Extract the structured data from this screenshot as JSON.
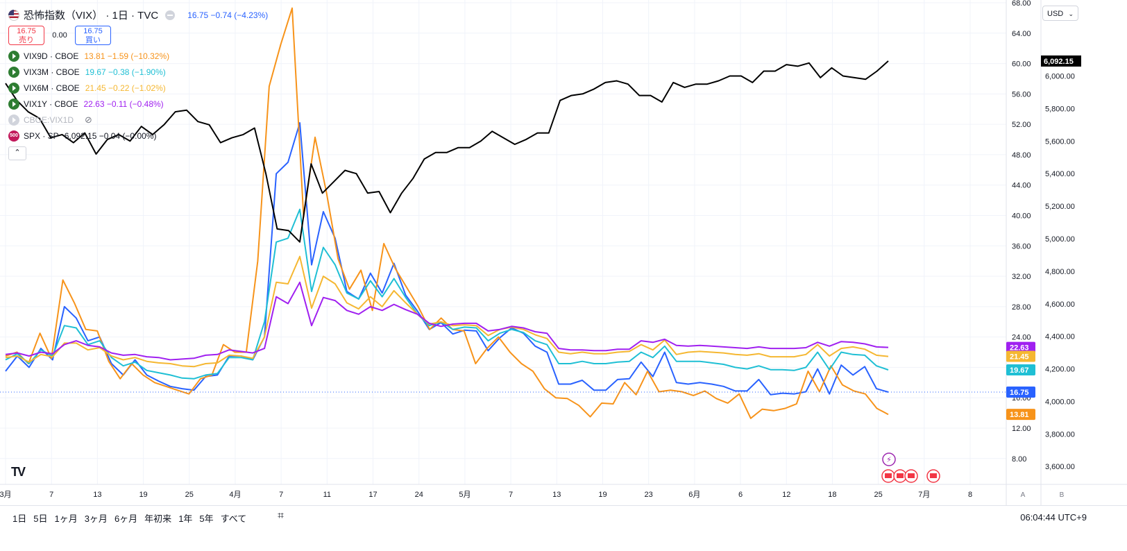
{
  "header": {
    "title": "恐怖指数（VIX） · 1日 · TVC",
    "price_change": "16.75 −0.74 (−4.23%)",
    "sell_price": "16.75",
    "sell_label": "売り",
    "spread": "0.00",
    "buy_price": "16.75",
    "buy_label": "買い"
  },
  "legend": [
    {
      "name": "VIX9D · CBOE",
      "value": "13.81 −1.59 (−10.32%)",
      "color": "#f7931a"
    },
    {
      "name": "VIX3M · CBOE",
      "value": "19.67 −0.38 (−1.90%)",
      "color": "#1fbfd4"
    },
    {
      "name": "VIX6M · CBOE",
      "value": "21.45 −0.22 (−1.02%)",
      "color": "#f5b731"
    },
    {
      "name": "VIX1Y · CBOE",
      "value": "22.63 −0.11 (−0.48%)",
      "color": "#a020f0"
    },
    {
      "name": "CBOE:VIX1D",
      "value": "",
      "color": "#b2b5be"
    },
    {
      "name": "SPX · SP",
      "value": "6,092.15 −0.04 (−0.00%)",
      "color": "#131722",
      "icon": "500"
    }
  ],
  "currency": "USD",
  "bottom": {
    "ranges": [
      "1日",
      "5日",
      "1ヶ月",
      "3ヶ月",
      "6ヶ月",
      "年初来",
      "1年",
      "5年",
      "すべて"
    ],
    "clock": "06:04:44 UTC+9",
    "axis_mode_a": "A",
    "axis_mode_b": "B"
  },
  "chart_data": {
    "type": "line",
    "x_labels": [
      "3月",
      "7",
      "13",
      "19",
      "25",
      "4月",
      "7",
      "11",
      "17",
      "24",
      "5月",
      "7",
      "13",
      "19",
      "23",
      "6月",
      "6",
      "12",
      "18",
      "25",
      "7月",
      "8"
    ],
    "left_axis": {
      "ticks": [
        "8.00",
        "12.00",
        "16.00",
        "20.00",
        "24.00",
        "28.00",
        "32.00",
        "36.00",
        "40.00",
        "44.00",
        "48.00",
        "52.00",
        "56.00",
        "60.00",
        "64.00",
        "68.00"
      ],
      "range": [
        4.6,
        68
      ]
    },
    "right_axis": {
      "ticks": [
        "3,600.00",
        "3,800.00",
        "4,000.00",
        "4,200.00",
        "4,400.00",
        "4,600.00",
        "4,800.00",
        "5,000.00",
        "5,200.00",
        "5,400.00",
        "5,600.00",
        "5,800.00",
        "6,000.00"
      ],
      "range": [
        3490,
        6450
      ]
    },
    "last_value_labels": [
      {
        "text": "22.63",
        "value": 22.63,
        "color": "#a020f0"
      },
      {
        "text": "21.45",
        "value": 21.45,
        "color": "#f5b731"
      },
      {
        "text": "19.67",
        "value": 19.67,
        "color": "#1fbfd4"
      },
      {
        "text": "16.75",
        "value": 16.75,
        "color": "#2962ff"
      },
      {
        "text": "13.81",
        "value": 13.81,
        "color": "#f7931a"
      }
    ],
    "spx_label": "6,092.15",
    "series": [
      {
        "name": "VIX",
        "axis": "left",
        "color": "#2962ff",
        "values": [
          19.5,
          21.5,
          20.0,
          22.5,
          21.0,
          28.0,
          26.5,
          23.5,
          24.0,
          20.5,
          19.0,
          21.0,
          19.0,
          18.2,
          17.5,
          17.2,
          17.0,
          18.8,
          19.0,
          21.5,
          21.5,
          21.0,
          24.0,
          45.5,
          47.0,
          52.2,
          33.5,
          40.5,
          37.0,
          30.0,
          29.0,
          32.4,
          29.8,
          33.7,
          29.5,
          27.4,
          25.0,
          25.9,
          24.4,
          24.9,
          24.8,
          22.2,
          23.9,
          25.2,
          24.5,
          22.8,
          22.0,
          17.8,
          17.8,
          18.3,
          17.0,
          17.0,
          18.4,
          18.5,
          20.7,
          18.8,
          22.0,
          18.0,
          17.8,
          18.0,
          17.8,
          17.5,
          16.9,
          16.9,
          18.4,
          16.4,
          16.6,
          16.5,
          16.8,
          19.8,
          16.5,
          20.3,
          19.0,
          20.1,
          17.2,
          16.75
        ]
      },
      {
        "name": "VIX9D",
        "axis": "left",
        "color": "#f7931a",
        "values": [
          21.5,
          22.0,
          20.5,
          24.5,
          21.2,
          31.5,
          28.5,
          25.0,
          24.8,
          20.8,
          18.5,
          20.5,
          19.0,
          18.0,
          17.5,
          17.0,
          16.5,
          18.5,
          19.0,
          23.0,
          22.0,
          22.0,
          34.0,
          57.0,
          62.5,
          67.3,
          39.8,
          50.3,
          43.0,
          34.3,
          30.3,
          32.8,
          27.5,
          36.3,
          33.0,
          30.5,
          28.0,
          25.0,
          26.5,
          25.0,
          24.8,
          20.5,
          22.5,
          24.0,
          22.0,
          20.5,
          19.5,
          17.2,
          16.0,
          15.9,
          15.0,
          13.5,
          15.3,
          15.2,
          18.0,
          16.4,
          19.5,
          16.8,
          17.0,
          16.8,
          16.3,
          16.9,
          15.9,
          15.3,
          16.5,
          13.3,
          14.5,
          14.3,
          14.6,
          15.2,
          19.5,
          16.8,
          20.2,
          17.7,
          16.9,
          16.5,
          14.6,
          13.81
        ]
      },
      {
        "name": "VIX3M",
        "axis": "left",
        "color": "#1fbfd4",
        "values": [
          21.0,
          21.8,
          20.5,
          22.3,
          21.5,
          25.5,
          25.2,
          23.0,
          23.5,
          21.3,
          20.2,
          20.7,
          19.6,
          19.3,
          19.0,
          18.6,
          18.5,
          19.0,
          19.2,
          21.3,
          21.3,
          21.0,
          26.0,
          36.5,
          37.0,
          40.8,
          30.0,
          35.8,
          33.5,
          29.8,
          29.0,
          31.4,
          29.3,
          31.7,
          29.2,
          27.0,
          25.5,
          26.0,
          25.0,
          25.3,
          25.2,
          23.5,
          24.5,
          25.0,
          24.6,
          23.5,
          23.0,
          20.5,
          20.5,
          20.8,
          20.5,
          20.5,
          20.7,
          20.8,
          22.0,
          21.3,
          22.8,
          20.8,
          20.8,
          20.8,
          20.6,
          20.4,
          20.0,
          19.8,
          20.2,
          19.7,
          19.7,
          19.6,
          20.0,
          22.0,
          19.7,
          22.0,
          21.7,
          21.6,
          20.2,
          19.67
        ]
      },
      {
        "name": "VIX6M",
        "axis": "left",
        "color": "#f5b731",
        "values": [
          21.3,
          21.5,
          20.7,
          21.7,
          21.4,
          23.2,
          23.2,
          22.3,
          22.6,
          21.5,
          21.0,
          21.3,
          20.8,
          20.6,
          20.5,
          20.2,
          20.1,
          20.5,
          20.6,
          21.6,
          21.5,
          21.2,
          24.0,
          31.2,
          31.0,
          34.6,
          27.8,
          32.0,
          31.0,
          28.5,
          27.7,
          29.3,
          28.0,
          30.1,
          28.5,
          27.0,
          25.7,
          26.0,
          25.5,
          25.6,
          25.5,
          24.2,
          25.0,
          25.3,
          25.0,
          24.3,
          23.8,
          22.0,
          21.8,
          22.0,
          21.8,
          21.8,
          22.0,
          22.1,
          23.0,
          22.3,
          23.6,
          21.7,
          22.0,
          22.1,
          22.0,
          21.9,
          21.7,
          21.6,
          21.8,
          21.4,
          21.4,
          21.4,
          21.7,
          23.0,
          21.5,
          22.5,
          22.7,
          22.4,
          21.6,
          21.45
        ]
      },
      {
        "name": "VIX1Y",
        "axis": "left",
        "color": "#a020f0",
        "values": [
          21.7,
          21.9,
          21.5,
          22.0,
          21.8,
          23.0,
          23.5,
          22.9,
          22.7,
          21.9,
          21.6,
          21.7,
          21.4,
          21.3,
          21.0,
          21.1,
          21.2,
          21.6,
          21.7,
          22.3,
          22.1,
          21.9,
          22.5,
          29.3,
          28.4,
          31.2,
          25.5,
          29.2,
          28.8,
          27.5,
          27.0,
          28.0,
          27.5,
          28.3,
          27.6,
          27.0,
          25.8,
          25.4,
          25.7,
          25.8,
          25.8,
          24.8,
          25.0,
          25.4,
          25.2,
          24.7,
          24.5,
          22.5,
          22.3,
          22.3,
          22.2,
          22.2,
          22.4,
          22.4,
          23.5,
          23.3,
          23.7,
          22.9,
          22.8,
          22.9,
          22.8,
          22.7,
          22.6,
          22.5,
          22.7,
          22.5,
          22.5,
          22.5,
          22.6,
          23.3,
          22.8,
          23.4,
          23.3,
          23.1,
          22.7,
          22.63
        ]
      },
      {
        "name": "SPX",
        "axis": "right",
        "color": "#000000",
        "values": [
          5955,
          5850,
          5780,
          5740,
          5620,
          5640,
          5590,
          5650,
          5520,
          5610,
          5640,
          5600,
          5690,
          5640,
          5700,
          5780,
          5790,
          5720,
          5700,
          5590,
          5620,
          5640,
          5680,
          5400,
          5060,
          5050,
          4980,
          5460,
          5280,
          5350,
          5420,
          5400,
          5280,
          5290,
          5160,
          5280,
          5370,
          5490,
          5530,
          5530,
          5560,
          5560,
          5600,
          5660,
          5620,
          5580,
          5610,
          5650,
          5650,
          5850,
          5880,
          5890,
          5920,
          5960,
          5970,
          5950,
          5880,
          5880,
          5840,
          5960,
          5930,
          5950,
          5950,
          5970,
          6000,
          6000,
          5960,
          6030,
          6030,
          6070,
          6060,
          6080,
          5990,
          6050,
          6000,
          5990,
          5980,
          6030,
          6092
        ]
      }
    ]
  }
}
